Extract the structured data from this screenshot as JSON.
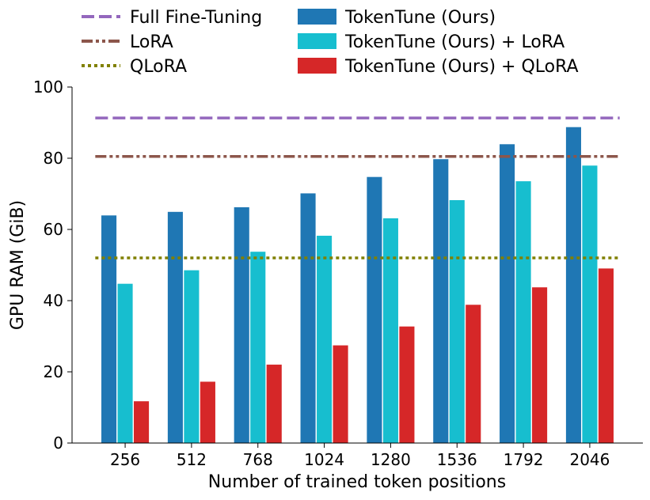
{
  "chart_data": {
    "type": "bar",
    "title": "",
    "xlabel": "Number of trained token positions",
    "ylabel": "GPU RAM (GiB)",
    "ylim": [
      0,
      100
    ],
    "yticks": [
      0,
      20,
      40,
      60,
      80,
      100
    ],
    "categories": [
      "256",
      "512",
      "768",
      "1024",
      "1280",
      "1536",
      "1792",
      "2046"
    ],
    "series": [
      {
        "name": "TokenTune (Ours)",
        "color": "#1f77b4",
        "values": [
          64,
          65,
          66.3,
          70.2,
          74.8,
          79.8,
          84,
          88.8
        ]
      },
      {
        "name": "TokenTune (Ours) + LoRA",
        "color": "#17becf",
        "values": [
          44.8,
          48.6,
          53.8,
          58.3,
          63.2,
          68.3,
          73.6,
          78
        ]
      },
      {
        "name": "TokenTune (Ours) + QLoRA",
        "color": "#d62728",
        "values": [
          11.8,
          17.3,
          22.1,
          27.5,
          32.8,
          38.9,
          43.8,
          49.1
        ]
      }
    ],
    "reference_lines": [
      {
        "name": "Full Fine-Tuning",
        "value": 91.3,
        "color": "#9467bd",
        "style": "dashed"
      },
      {
        "name": "LoRA",
        "value": 80.5,
        "color": "#8c564b",
        "style": "dashdotdot"
      },
      {
        "name": "QLoRA",
        "value": 52,
        "color": "#808000",
        "style": "dotted"
      }
    ],
    "legend_placement": "top, outside plot, two columns",
    "grid": false
  }
}
